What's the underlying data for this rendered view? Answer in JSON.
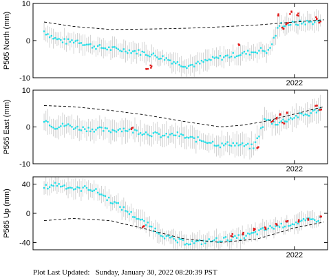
{
  "footer": {
    "label": "Plot Last Updated:",
    "value": "Sunday, January 30, 2022 08:20:39 PST"
  },
  "colors": {
    "normal_points": "#22dde6",
    "recent_points": "#e01b1b",
    "error_bars": "#c8c8c8",
    "model_curve": "#000000"
  },
  "chart_data": [
    {
      "type": "scatter",
      "station": "P565",
      "component": "North",
      "ylabel": "P565 North (mm)",
      "ylim": [
        -10,
        10
      ],
      "yticks": [
        -10,
        0,
        10
      ],
      "xlim": [
        2018.45,
        2022.45
      ],
      "xtick_label": "2022",
      "grid": false,
      "series": [
        {
          "kind": "daily_positions",
          "x": [
            2018.6,
            2018.75,
            2018.9,
            2019.05,
            2019.2,
            2019.35,
            2019.5,
            2019.65,
            2019.8,
            2019.95,
            2020.1,
            2020.25,
            2020.4,
            2020.55,
            2020.7,
            2020.85,
            2021.0,
            2021.15,
            2021.3,
            2021.45,
            2021.55,
            2021.65,
            2021.8,
            2021.95,
            2022.1,
            2022.25,
            2022.35
          ],
          "y": [
            2.5,
            0.5,
            -0.3,
            0.0,
            -1.2,
            -1.8,
            -2.2,
            -2.5,
            -2.8,
            -3.3,
            -4.0,
            -4.8,
            -6.0,
            -6.8,
            -6.2,
            -5.2,
            -4.6,
            -4.0,
            -3.5,
            -3.0,
            -2.5,
            -3.0,
            4.3,
            4.5,
            4.8,
            5.0,
            5.5
          ],
          "error": 2.5
        },
        {
          "kind": "recent_positions",
          "x": [
            2020.0,
            2020.05,
            2021.25,
            2021.78,
            2021.85,
            2021.9,
            2021.95,
            2022.05,
            2022.3,
            2022.35
          ],
          "y": [
            -7.5,
            -7.0,
            -1.0,
            7.0,
            3.5,
            4.5,
            7.5,
            7.0,
            6.0,
            5.0
          ]
        },
        {
          "kind": "model",
          "x": [
            2018.6,
            2019.0,
            2019.5,
            2020.0,
            2020.5,
            2021.0,
            2021.5,
            2022.0,
            2022.4
          ],
          "y": [
            5.0,
            3.8,
            3.0,
            3.1,
            3.3,
            3.7,
            4.2,
            5.0,
            5.6
          ]
        }
      ]
    },
    {
      "type": "scatter",
      "station": "P565",
      "component": "East",
      "ylabel": "P565 East (mm)",
      "ylim": [
        -10,
        10
      ],
      "yticks": [
        -10,
        0,
        10
      ],
      "xlim": [
        2018.45,
        2022.45
      ],
      "xtick_label": "2022",
      "grid": false,
      "series": [
        {
          "kind": "daily_positions",
          "x": [
            2018.6,
            2018.75,
            2018.9,
            2019.05,
            2019.2,
            2019.35,
            2019.5,
            2019.65,
            2019.8,
            2019.95,
            2020.1,
            2020.25,
            2020.4,
            2020.55,
            2020.7,
            2020.85,
            2021.0,
            2021.15,
            2021.3,
            2021.45,
            2021.6,
            2021.75,
            2021.9,
            2022.05,
            2022.2,
            2022.35
          ],
          "y": [
            2.0,
            0.0,
            0.5,
            -0.3,
            -0.5,
            -0.7,
            -1.0,
            -0.5,
            -1.0,
            -1.5,
            -2.0,
            -2.5,
            -2.0,
            -3.0,
            -3.5,
            -4.0,
            -5.0,
            -4.5,
            -5.0,
            -5.5,
            2.0,
            1.0,
            2.0,
            3.0,
            3.5,
            5.0
          ],
          "error": 3.0
        },
        {
          "kind": "recent_positions",
          "x": [
            2019.8,
            2021.5,
            2021.7,
            2021.75,
            2021.8,
            2021.85,
            2021.9,
            2022.3,
            2022.35
          ],
          "y": [
            -0.5,
            -5.5,
            1.5,
            2.5,
            3.5,
            1.0,
            4.0,
            5.5,
            5.0
          ]
        },
        {
          "kind": "model",
          "x": [
            2018.6,
            2019.0,
            2019.5,
            2020.0,
            2020.5,
            2021.0,
            2021.3,
            2021.6,
            2022.0,
            2022.4
          ],
          "y": [
            5.8,
            5.5,
            4.5,
            3.2,
            1.5,
            0.0,
            0.5,
            1.5,
            3.5,
            5.5
          ]
        }
      ]
    },
    {
      "type": "scatter",
      "station": "P565",
      "component": "Up",
      "ylabel": "P565 Up (mm)",
      "ylim": [
        -50,
        50
      ],
      "yticks": [
        -40,
        0,
        40
      ],
      "xlim": [
        2018.45,
        2022.45
      ],
      "xtick_label": "2022",
      "grid": false,
      "series": [
        {
          "kind": "daily_positions",
          "x": [
            2018.6,
            2018.75,
            2018.9,
            2019.05,
            2019.2,
            2019.35,
            2019.5,
            2019.65,
            2019.8,
            2019.95,
            2020.1,
            2020.25,
            2020.4,
            2020.55,
            2020.7,
            2020.85,
            2021.0,
            2021.15,
            2021.3,
            2021.45,
            2021.6,
            2021.75,
            2021.9,
            2022.05,
            2022.2,
            2022.35
          ],
          "y": [
            35,
            40,
            37,
            33,
            35,
            28,
            18,
            8,
            -2,
            -12,
            -22,
            -32,
            -38,
            -40,
            -40,
            -38,
            -36,
            -35,
            -32,
            -28,
            -22,
            -18,
            -15,
            -12,
            -10,
            -8
          ],
          "error": 12
        },
        {
          "kind": "recent_positions",
          "x": [
            2019.95,
            2021.15,
            2021.3,
            2021.45,
            2021.6,
            2021.75,
            2021.9,
            2022.05,
            2022.2,
            2022.35
          ],
          "y": [
            -18,
            -30,
            -28,
            -22,
            -20,
            -15,
            -12,
            -10,
            -8,
            -5
          ]
        },
        {
          "kind": "model",
          "x": [
            2018.6,
            2019.0,
            2019.5,
            2020.0,
            2020.5,
            2021.0,
            2021.5,
            2022.0,
            2022.4
          ],
          "y": [
            -10,
            -7,
            -10,
            -22,
            -35,
            -40,
            -35,
            -20,
            -12
          ]
        }
      ]
    }
  ]
}
